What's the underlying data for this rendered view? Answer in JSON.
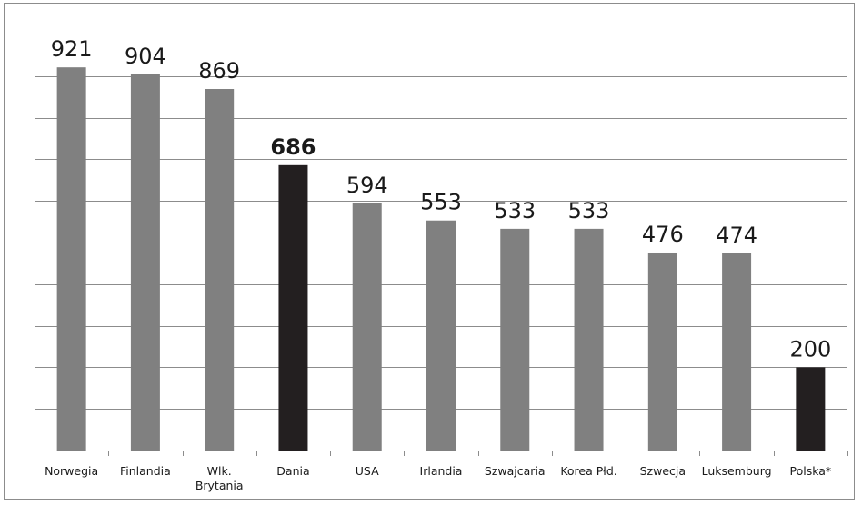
{
  "chart_data": {
    "type": "bar",
    "categories": [
      "Norwegia",
      "Finlandia",
      "Wlk. Brytania",
      "Dania",
      "USA",
      "Irlandia",
      "Szwajcaria",
      "Korea Płd.",
      "Szwecja",
      "Luksemburg",
      "Polska*"
    ],
    "category_lines": [
      [
        "Norwegia"
      ],
      [
        "Finlandia"
      ],
      [
        "Wlk.",
        "Brytania"
      ],
      [
        "Dania"
      ],
      [
        "USA"
      ],
      [
        "Irlandia"
      ],
      [
        "Szwajcaria"
      ],
      [
        "Korea Płd."
      ],
      [
        "Szwecja"
      ],
      [
        "Luksemburg"
      ],
      [
        "Polska*"
      ]
    ],
    "values": [
      921,
      904,
      869,
      686,
      594,
      553,
      533,
      533,
      476,
      474,
      200
    ],
    "value_labels": [
      "921",
      "904",
      "869",
      "686",
      "594",
      "553",
      "533",
      "533",
      "476",
      "474",
      "200"
    ],
    "highlighted": [
      false,
      false,
      false,
      true,
      false,
      false,
      false,
      false,
      false,
      false,
      true
    ],
    "bold_labels": [
      false,
      false,
      false,
      true,
      false,
      false,
      false,
      false,
      false,
      false,
      false
    ],
    "ylim": [
      0,
      1000
    ],
    "grid": true,
    "colors": {
      "bar": "#808080",
      "highlight": "#231f20",
      "grid": "#8c8c8c"
    },
    "title": "",
    "xlabel": "",
    "ylabel": ""
  }
}
